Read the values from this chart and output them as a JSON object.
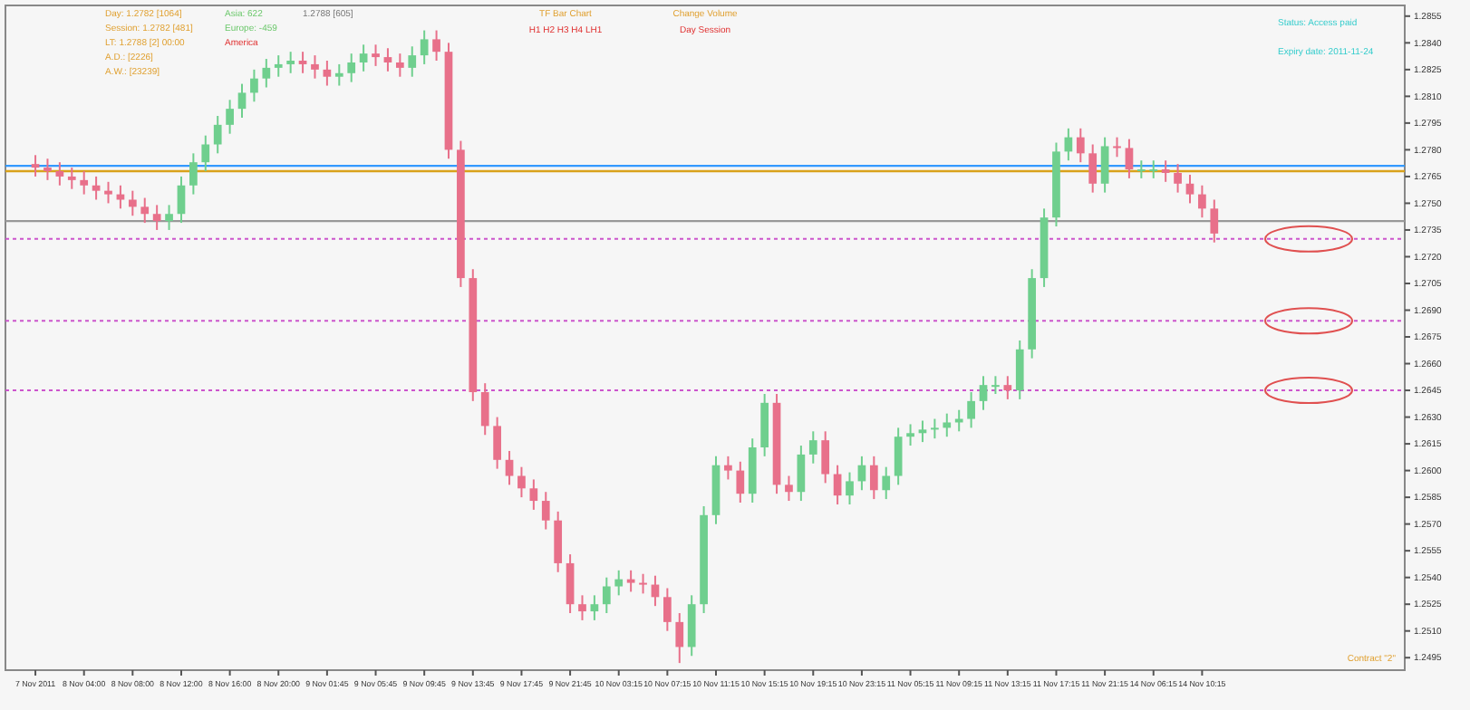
{
  "chart_data": {
    "type": "candlestick",
    "categories": [
      "7 Nov 2011",
      null,
      null,
      null,
      "8 Nov 04:00",
      null,
      null,
      null,
      "8 Nov 08:00",
      null,
      null,
      null,
      "8 Nov 12:00",
      null,
      null,
      null,
      "8 Nov 16:00",
      null,
      null,
      null,
      "8 Nov 20:00",
      null,
      null,
      null,
      "9 Nov 01:45",
      null,
      null,
      null,
      "9 Nov 05:45",
      null,
      null,
      null,
      "9 Nov 09:45",
      null,
      null,
      null,
      "9 Nov 13:45",
      null,
      null,
      null,
      "9 Nov 17:45",
      null,
      null,
      null,
      "9 Nov 21:45",
      null,
      null,
      null,
      "10 Nov 03:15",
      null,
      null,
      null,
      "10 Nov 07:15",
      null,
      null,
      null,
      "10 Nov 11:15",
      null,
      null,
      null,
      "10 Nov 15:15",
      null,
      null,
      null,
      "10 Nov 19:15",
      null,
      null,
      null,
      "10 Nov 23:15",
      null,
      null,
      null,
      "11 Nov 05:15",
      null,
      null,
      null,
      "11 Nov 09:15",
      null,
      null,
      null,
      "11 Nov 13:15",
      null,
      null,
      null,
      "11 Nov 17:15",
      null,
      null,
      null,
      "11 Nov 21:15",
      null,
      null,
      null,
      "14 Nov 06:15",
      null,
      null,
      null,
      "14 Nov 10:15",
      null,
      null,
      null,
      null,
      null,
      null,
      null,
      null,
      null,
      null,
      null,
      null,
      null,
      null,
      null,
      null
    ],
    "ohlc": [
      [
        1.2772,
        1.2777,
        1.2765,
        1.277
      ],
      [
        1.277,
        1.2775,
        1.2763,
        1.2768
      ],
      [
        1.2768,
        1.2773,
        1.276,
        1.2765
      ],
      [
        1.2765,
        1.277,
        1.2758,
        1.2763
      ],
      [
        1.2763,
        1.2768,
        1.2755,
        1.276
      ],
      [
        1.276,
        1.2765,
        1.2752,
        1.2757
      ],
      [
        1.2757,
        1.2762,
        1.275,
        1.2755
      ],
      [
        1.2755,
        1.276,
        1.2747,
        1.2752
      ],
      [
        1.2752,
        1.2757,
        1.2743,
        1.2748
      ],
      [
        1.2748,
        1.2753,
        1.2739,
        1.2744
      ],
      [
        1.2744,
        1.2749,
        1.2735,
        1.274
      ],
      [
        1.274,
        1.2749,
        1.2735,
        1.2744
      ],
      [
        1.2744,
        1.2765,
        1.2739,
        1.276
      ],
      [
        1.276,
        1.2778,
        1.2755,
        1.2773
      ],
      [
        1.2773,
        1.2788,
        1.2768,
        1.2783
      ],
      [
        1.2783,
        1.2799,
        1.2778,
        1.2794
      ],
      [
        1.2794,
        1.2808,
        1.2789,
        1.2803
      ],
      [
        1.2803,
        1.2817,
        1.2798,
        1.2812
      ],
      [
        1.2812,
        1.2825,
        1.2807,
        1.282
      ],
      [
        1.282,
        1.2831,
        1.2815,
        1.2826
      ],
      [
        1.2826,
        1.2833,
        1.2821,
        1.2828
      ],
      [
        1.2828,
        1.2835,
        1.2823,
        1.283
      ],
      [
        1.283,
        1.2835,
        1.2823,
        1.2828
      ],
      [
        1.2828,
        1.2833,
        1.282,
        1.2825
      ],
      [
        1.2825,
        1.283,
        1.2816,
        1.2821
      ],
      [
        1.2821,
        1.2828,
        1.2816,
        1.2823
      ],
      [
        1.2823,
        1.2834,
        1.2818,
        1.2829
      ],
      [
        1.2829,
        1.2839,
        1.2824,
        1.2834
      ],
      [
        1.2834,
        1.2839,
        1.2827,
        1.2832
      ],
      [
        1.2832,
        1.2837,
        1.2824,
        1.2829
      ],
      [
        1.2829,
        1.2834,
        1.2821,
        1.2826
      ],
      [
        1.2826,
        1.2838,
        1.2821,
        1.2833
      ],
      [
        1.2833,
        1.2847,
        1.2828,
        1.2842
      ],
      [
        1.2842,
        1.2847,
        1.283,
        1.2835
      ],
      [
        1.2835,
        1.284,
        1.2775,
        1.278
      ],
      [
        1.278,
        1.2785,
        1.2703,
        1.2708
      ],
      [
        1.2708,
        1.2713,
        1.2639,
        1.2644
      ],
      [
        1.2644,
        1.2649,
        1.262,
        1.2625
      ],
      [
        1.2625,
        1.263,
        1.2601,
        1.2606
      ],
      [
        1.2606,
        1.2611,
        1.2592,
        1.2597
      ],
      [
        1.2597,
        1.2602,
        1.2585,
        1.259
      ],
      [
        1.259,
        1.2595,
        1.2578,
        1.2583
      ],
      [
        1.2583,
        1.2588,
        1.2567,
        1.2572
      ],
      [
        1.2572,
        1.2577,
        1.2543,
        1.2548
      ],
      [
        1.2548,
        1.2553,
        1.252,
        1.2525
      ],
      [
        1.2525,
        1.253,
        1.2516,
        1.2521
      ],
      [
        1.2521,
        1.253,
        1.2516,
        1.2525
      ],
      [
        1.2525,
        1.254,
        1.252,
        1.2535
      ],
      [
        1.2535,
        1.2544,
        1.253,
        1.2539
      ],
      [
        1.2539,
        1.2544,
        1.2532,
        1.2537
      ],
      [
        1.2537,
        1.2542,
        1.2531,
        1.2536
      ],
      [
        1.2536,
        1.2541,
        1.2524,
        1.2529
      ],
      [
        1.2529,
        1.2534,
        1.251,
        1.2515
      ],
      [
        1.2515,
        1.252,
        1.2492,
        1.2501
      ],
      [
        1.2501,
        1.253,
        1.2496,
        1.2525
      ],
      [
        1.2525,
        1.258,
        1.252,
        1.2575
      ],
      [
        1.2575,
        1.2608,
        1.257,
        1.2603
      ],
      [
        1.2603,
        1.2608,
        1.2595,
        1.26
      ],
      [
        1.26,
        1.2605,
        1.2582,
        1.2587
      ],
      [
        1.2587,
        1.2618,
        1.2582,
        1.2613
      ],
      [
        1.2613,
        1.2643,
        1.2608,
        1.2638
      ],
      [
        1.2638,
        1.2643,
        1.2587,
        1.2592
      ],
      [
        1.2592,
        1.2597,
        1.2583,
        1.2588
      ],
      [
        1.2588,
        1.2614,
        1.2583,
        1.2609
      ],
      [
        1.2609,
        1.2622,
        1.2604,
        1.2617
      ],
      [
        1.2617,
        1.2622,
        1.2593,
        1.2598
      ],
      [
        1.2598,
        1.2603,
        1.2581,
        1.2586
      ],
      [
        1.2586,
        1.2599,
        1.2581,
        1.2594
      ],
      [
        1.2594,
        1.2608,
        1.2589,
        1.2603
      ],
      [
        1.2603,
        1.2608,
        1.2584,
        1.2589
      ],
      [
        1.2589,
        1.2602,
        1.2584,
        1.2597
      ],
      [
        1.2597,
        1.2624,
        1.2592,
        1.2619
      ],
      [
        1.2619,
        1.2626,
        1.2614,
        1.2621
      ],
      [
        1.2621,
        1.2628,
        1.2616,
        1.2623
      ],
      [
        1.2623,
        1.2629,
        1.2618,
        1.2624
      ],
      [
        1.2624,
        1.2632,
        1.2619,
        1.2627
      ],
      [
        1.2627,
        1.2634,
        1.2622,
        1.2629
      ],
      [
        1.2629,
        1.2644,
        1.2624,
        1.2639
      ],
      [
        1.2639,
        1.2653,
        1.2634,
        1.2648
      ],
      [
        1.2648,
        1.2653,
        1.2643,
        1.2648
      ],
      [
        1.2648,
        1.2653,
        1.264,
        1.2645
      ],
      [
        1.2645,
        1.2673,
        1.264,
        1.2668
      ],
      [
        1.2668,
        1.2713,
        1.2663,
        1.2708
      ],
      [
        1.2708,
        1.2747,
        1.2703,
        1.2742
      ],
      [
        1.2742,
        1.2784,
        1.2737,
        1.2779
      ],
      [
        1.2779,
        1.2792,
        1.2774,
        1.2787
      ],
      [
        1.2787,
        1.2792,
        1.2773,
        1.2778
      ],
      [
        1.2778,
        1.2783,
        1.2756,
        1.2761
      ],
      [
        1.2761,
        1.2787,
        1.2756,
        1.2782
      ],
      [
        1.2782,
        1.2787,
        1.2776,
        1.2781
      ],
      [
        1.2781,
        1.2786,
        1.2764,
        1.2769
      ],
      [
        1.2769,
        1.2774,
        1.2764,
        1.2769
      ],
      [
        1.2769,
        1.2774,
        1.2764,
        1.2769
      ],
      [
        1.2769,
        1.2774,
        1.2762,
        1.2767
      ],
      [
        1.2767,
        1.2772,
        1.2756,
        1.2761
      ],
      [
        1.2761,
        1.2766,
        1.275,
        1.2755
      ],
      [
        1.2755,
        1.276,
        1.2742,
        1.2747
      ],
      [
        1.2747,
        1.2752,
        1.2728,
        1.2733
      ],
      null,
      null,
      null,
      null,
      null,
      null,
      null,
      null,
      null,
      null,
      null,
      null,
      null,
      null,
      null
    ],
    "ylim": [
      1.2488,
      1.2861
    ],
    "yticks": [
      1.2495,
      {
        "value": 1.251,
        "label": "1.2510"
      },
      1.2525,
      {
        "value": 1.254,
        "label": "1.2540"
      },
      1.2555,
      {
        "value": 1.257,
        "label": "1.2570"
      },
      1.2585,
      {
        "value": 1.26,
        "label": "1.2600"
      },
      1.2615,
      {
        "value": 1.263,
        "label": "1.2630"
      },
      1.2645,
      {
        "value": 1.266,
        "label": "1.2660"
      },
      1.2675,
      {
        "value": 1.269,
        "label": "1.2690"
      },
      1.2705,
      {
        "value": 1.272,
        "label": "1.2720"
      },
      1.2735,
      {
        "value": 1.275,
        "label": "1.2750"
      },
      1.2765,
      {
        "value": 1.278,
        "label": "1.2780"
      },
      1.2795,
      {
        "value": 1.281,
        "label": "1.2810"
      },
      1.2825,
      {
        "value": 1.284,
        "label": "1.2840"
      },
      1.2855
    ],
    "grid": false,
    "ref_lines": [
      {
        "axis": "y",
        "value": 1.2771,
        "color": "#3399ff",
        "line_style": "solid"
      },
      {
        "axis": "y",
        "value": 1.2768,
        "color": "#d9a21b",
        "line_style": "solid"
      },
      {
        "axis": "y",
        "value": 1.274,
        "color": "#999999",
        "line_style": "solid"
      },
      {
        "axis": "y",
        "value": 1.273,
        "color": "#cc55cc",
        "line_style": "dotted"
      },
      {
        "axis": "y",
        "value": 1.2684,
        "color": "#cc55cc",
        "line_style": "dotted"
      },
      {
        "axis": "y",
        "value": 1.2645,
        "color": "#cc55cc",
        "line_style": "dotted"
      }
    ],
    "annotations": [
      "Day: 1.2782 [1064]",
      "Session: 1.2782 [481]",
      "LT: 1.2788 [2] 00:00",
      "A.D.: [2226]",
      "A.W.: [23239]",
      "Asia: 622",
      "Europe: -459",
      "America",
      "1.2788 [605]",
      "TF Bar Chart",
      "H1  H2  H3  H4  LH1",
      "Change Volume",
      "Day  Session",
      "Status: Access paid",
      "Expiry date: 2011-11-24",
      "Contract \"2\""
    ]
  }
}
